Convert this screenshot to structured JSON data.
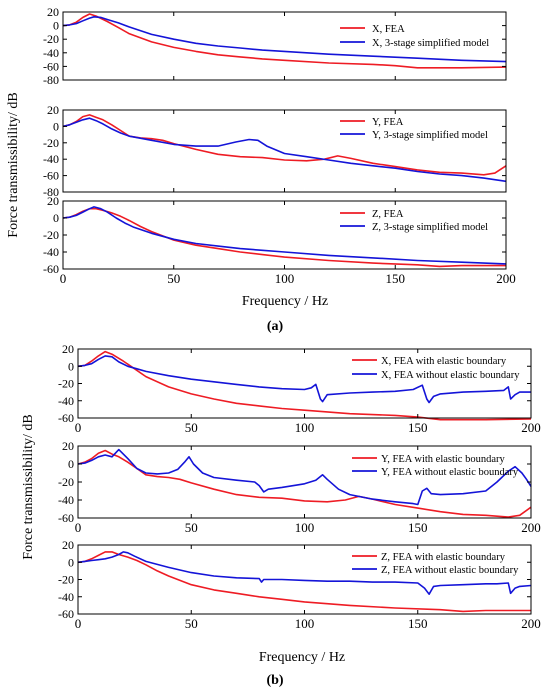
{
  "figure": {
    "caption_a": "(a)",
    "caption_b": "(b)",
    "a_ylabel": "Force transmissibility/ dB",
    "a_xlabel": "Frequency / Hz",
    "b_ylabel": "Force transmissibility/ dB",
    "b_xlabel": "Frequency / Hz"
  },
  "colors": {
    "red": "#ee1c24",
    "blue": "#1414d8"
  },
  "chart_data": [
    {
      "type": "line",
      "group": "a",
      "panel": 1,
      "xlim": [
        0,
        200
      ],
      "ylim": [
        -80,
        20
      ],
      "xticks": [
        0,
        50,
        100,
        150,
        200
      ],
      "xtick_labels_shown": false,
      "yticks": [
        20,
        0,
        -20,
        -40,
        -60,
        -80
      ],
      "series": [
        {
          "name": "X, FEA",
          "color": "red",
          "x": [
            0,
            3,
            6,
            9,
            12,
            15,
            20,
            25,
            30,
            40,
            50,
            60,
            70,
            80,
            90,
            100,
            120,
            140,
            150,
            160,
            180,
            200
          ],
          "y": [
            0,
            1,
            5,
            12,
            17,
            14,
            6,
            -3,
            -12,
            -24,
            -32,
            -38,
            -43,
            -46,
            -49,
            -51,
            -55,
            -57,
            -59,
            -62,
            -62,
            -61
          ]
        },
        {
          "name": "X, 3-stage simplified model",
          "color": "blue",
          "x": [
            0,
            3,
            6,
            9,
            12,
            14,
            17,
            20,
            25,
            30,
            40,
            50,
            60,
            70,
            80,
            90,
            100,
            120,
            140,
            160,
            180,
            200
          ],
          "y": [
            0,
            1,
            3,
            7,
            11,
            13,
            12,
            9,
            4,
            -2,
            -13,
            -20,
            -26,
            -30,
            -33,
            -36,
            -38,
            -42,
            -45,
            -48,
            -51,
            -53
          ]
        }
      ]
    },
    {
      "type": "line",
      "group": "a",
      "panel": 2,
      "xlim": [
        0,
        200
      ],
      "ylim": [
        -80,
        20
      ],
      "xticks": [
        0,
        50,
        100,
        150,
        200
      ],
      "xtick_labels_shown": false,
      "yticks": [
        20,
        0,
        -20,
        -40,
        -60,
        -80
      ],
      "series": [
        {
          "name": "Y, FEA",
          "color": "red",
          "x": [
            0,
            3,
            6,
            9,
            12,
            15,
            18,
            22,
            26,
            30,
            35,
            40,
            45,
            50,
            60,
            70,
            80,
            90,
            100,
            110,
            118,
            124,
            130,
            140,
            150,
            160,
            170,
            180,
            190,
            195,
            200
          ],
          "y": [
            0,
            2,
            6,
            12,
            14,
            11,
            8,
            2,
            -5,
            -12,
            -14,
            -15,
            -17,
            -21,
            -28,
            -34,
            -37,
            -38,
            -41,
            -42,
            -40,
            -36,
            -39,
            -45,
            -49,
            -53,
            -56,
            -57,
            -59,
            -57,
            -48
          ]
        },
        {
          "name": "Y, 3-stage simplified model",
          "color": "blue",
          "x": [
            0,
            3,
            6,
            9,
            12,
            15,
            18,
            22,
            26,
            30,
            40,
            50,
            60,
            70,
            78,
            84,
            88,
            92,
            100,
            110,
            120,
            130,
            140,
            150,
            160,
            170,
            180,
            190,
            200
          ],
          "y": [
            0,
            2,
            5,
            8,
            10,
            7,
            3,
            -3,
            -8,
            -12,
            -17,
            -22,
            -24,
            -24,
            -19,
            -16,
            -17,
            -24,
            -33,
            -37,
            -41,
            -45,
            -48,
            -51,
            -55,
            -58,
            -60,
            -63,
            -67
          ]
        }
      ]
    },
    {
      "type": "line",
      "group": "a",
      "panel": 3,
      "xlim": [
        0,
        200
      ],
      "ylim": [
        -60,
        20
      ],
      "xticks": [
        0,
        50,
        100,
        150,
        200
      ],
      "yticks": [
        20,
        0,
        -20,
        -40,
        -60
      ],
      "series": [
        {
          "name": "Z, FEA",
          "color": "red",
          "x": [
            0,
            3,
            6,
            9,
            12,
            15,
            18,
            22,
            26,
            30,
            35,
            40,
            50,
            60,
            70,
            80,
            90,
            100,
            120,
            140,
            160,
            170,
            180,
            190,
            200
          ],
          "y": [
            0,
            1,
            4,
            8,
            11,
            11,
            9,
            6,
            2,
            -3,
            -10,
            -16,
            -26,
            -32,
            -36,
            -40,
            -43,
            -46,
            -50,
            -53,
            -55,
            -57,
            -56,
            -56,
            -56
          ]
        },
        {
          "name": "Z, 3-stage simplified model",
          "color": "blue",
          "x": [
            0,
            3,
            6,
            9,
            12,
            14,
            17,
            20,
            24,
            28,
            32,
            40,
            50,
            60,
            70,
            80,
            90,
            100,
            120,
            140,
            160,
            180,
            200
          ],
          "y": [
            0,
            1,
            3,
            7,
            11,
            13,
            11,
            7,
            0,
            -6,
            -11,
            -18,
            -25,
            -30,
            -33,
            -36,
            -38,
            -40,
            -44,
            -47,
            -50,
            -52,
            -54
          ]
        }
      ]
    },
    {
      "type": "line",
      "group": "b",
      "panel": 1,
      "xlim": [
        0,
        200
      ],
      "ylim": [
        -60,
        20
      ],
      "xticks": [
        0,
        50,
        100,
        150,
        200
      ],
      "yticks": [
        20,
        0,
        -20,
        -40,
        -60
      ],
      "series": [
        {
          "name": "X, FEA with elastic boundary",
          "color": "red",
          "x": [
            0,
            3,
            6,
            9,
            12,
            15,
            20,
            25,
            30,
            40,
            50,
            60,
            70,
            80,
            90,
            100,
            120,
            140,
            150,
            160,
            180,
            200
          ],
          "y": [
            0,
            1,
            6,
            12,
            17,
            14,
            6,
            -3,
            -12,
            -24,
            -32,
            -38,
            -43,
            -46,
            -49,
            -51,
            -55,
            -57,
            -59,
            -62,
            -62,
            -61
          ]
        },
        {
          "name": "X, FEA without elastic boundary",
          "color": "blue",
          "x": [
            0,
            3,
            6,
            9,
            12,
            15,
            18,
            22,
            26,
            30,
            40,
            50,
            60,
            70,
            80,
            90,
            100,
            103,
            105,
            107,
            108,
            110,
            120,
            130,
            140,
            148,
            152,
            154,
            155,
            157,
            160,
            170,
            180,
            188,
            190,
            191,
            193,
            195,
            200
          ],
          "y": [
            0,
            1,
            3,
            8,
            12,
            11,
            5,
            0,
            -3,
            -6,
            -11,
            -15,
            -18,
            -21,
            -24,
            -26,
            -27,
            -25,
            -21,
            -38,
            -41,
            -33,
            -31,
            -30,
            -29,
            -27,
            -22,
            -38,
            -42,
            -35,
            -32,
            -30,
            -29,
            -28,
            -24,
            -38,
            -33,
            -30,
            -30
          ]
        }
      ]
    },
    {
      "type": "line",
      "group": "b",
      "panel": 2,
      "xlim": [
        0,
        200
      ],
      "ylim": [
        -60,
        20
      ],
      "xticks": [
        0,
        50,
        100,
        150,
        200
      ],
      "yticks": [
        20,
        0,
        -20,
        -40,
        -60
      ],
      "series": [
        {
          "name": "Y, FEA with elastic boundary",
          "color": "red",
          "x": [
            0,
            3,
            6,
            9,
            12,
            15,
            18,
            22,
            26,
            30,
            35,
            40,
            45,
            50,
            60,
            70,
            80,
            90,
            100,
            110,
            118,
            124,
            130,
            140,
            150,
            160,
            170,
            180,
            190,
            195,
            200
          ],
          "y": [
            0,
            2,
            6,
            12,
            15,
            11,
            8,
            2,
            -5,
            -12,
            -14,
            -15,
            -17,
            -21,
            -28,
            -34,
            -37,
            -38,
            -41,
            -42,
            -40,
            -36,
            -39,
            -45,
            -49,
            -53,
            -56,
            -57,
            -59,
            -57,
            -48
          ]
        },
        {
          "name": "Y, FEA without elastic boundary",
          "color": "blue",
          "x": [
            0,
            3,
            6,
            9,
            12,
            15,
            18,
            22,
            26,
            30,
            35,
            40,
            44,
            47,
            49,
            51,
            55,
            60,
            70,
            78,
            80,
            82,
            84,
            90,
            100,
            105,
            108,
            110,
            115,
            120,
            130,
            140,
            148,
            150,
            152,
            154,
            156,
            160,
            170,
            180,
            185,
            190,
            193,
            196,
            198,
            200
          ],
          "y": [
            0,
            1,
            4,
            8,
            10,
            8,
            16,
            6,
            -5,
            -10,
            -11,
            -10,
            -6,
            2,
            8,
            0,
            -10,
            -15,
            -18,
            -20,
            -24,
            -31,
            -28,
            -26,
            -22,
            -18,
            -12,
            -17,
            -28,
            -34,
            -39,
            -42,
            -44,
            -45,
            -30,
            -27,
            -33,
            -34,
            -33,
            -30,
            -20,
            -8,
            -3,
            -10,
            -17,
            -25
          ]
        }
      ]
    },
    {
      "type": "line",
      "group": "b",
      "panel": 3,
      "xlim": [
        0,
        200
      ],
      "ylim": [
        -60,
        20
      ],
      "xticks": [
        0,
        50,
        100,
        150,
        200
      ],
      "yticks": [
        20,
        0,
        -20,
        -40,
        -60
      ],
      "series": [
        {
          "name": "Z, FEA with elastic boundary",
          "color": "red",
          "x": [
            0,
            3,
            6,
            9,
            12,
            15,
            18,
            22,
            26,
            30,
            35,
            40,
            50,
            60,
            70,
            80,
            90,
            100,
            120,
            140,
            160,
            170,
            180,
            190,
            200
          ],
          "y": [
            0,
            1,
            4,
            8,
            12,
            12,
            9,
            6,
            2,
            -3,
            -10,
            -16,
            -26,
            -32,
            -36,
            -40,
            -43,
            -46,
            -50,
            -53,
            -55,
            -57,
            -56,
            -56,
            -56
          ]
        },
        {
          "name": "Z, FEA without elastic boundary",
          "color": "blue",
          "x": [
            0,
            3,
            6,
            9,
            12,
            15,
            18,
            20,
            22,
            25,
            30,
            40,
            50,
            60,
            70,
            80,
            81,
            82,
            90,
            100,
            110,
            120,
            130,
            140,
            150,
            153,
            155,
            157,
            160,
            170,
            180,
            185,
            190,
            191,
            193,
            195,
            200
          ],
          "y": [
            0,
            1,
            2,
            3,
            4,
            6,
            9,
            12,
            11,
            7,
            1,
            -6,
            -12,
            -16,
            -18,
            -19,
            -23,
            -20,
            -20,
            -21,
            -22,
            -22,
            -23,
            -23,
            -24,
            -30,
            -37,
            -28,
            -27,
            -26,
            -25,
            -25,
            -24,
            -36,
            -30,
            -28,
            -27
          ]
        }
      ]
    }
  ]
}
